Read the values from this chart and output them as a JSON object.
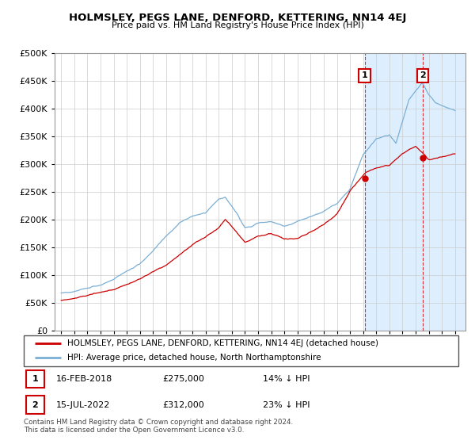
{
  "title": "HOLMSLEY, PEGS LANE, DENFORD, KETTERING, NN14 4EJ",
  "subtitle": "Price paid vs. HM Land Registry's House Price Index (HPI)",
  "ylim": [
    0,
    500000
  ],
  "xlim_start": 1994.5,
  "xlim_end": 2025.8,
  "hpi_color": "#7bafd4",
  "property_color": "#cc0000",
  "shade_color": "#ddeeff",
  "sale1_year": 2018.12,
  "sale1_price": 275000,
  "sale2_year": 2022.54,
  "sale2_price": 312000,
  "legend_property": "HOLMSLEY, PEGS LANE, DENFORD, KETTERING, NN14 4EJ (detached house)",
  "legend_hpi": "HPI: Average price, detached house, North Northamptonshire",
  "footer": "Contains HM Land Registry data © Crown copyright and database right 2024.\nThis data is licensed under the Open Government Licence v3.0.",
  "background_color": "#ffffff",
  "grid_color": "#cccccc",
  "table_row1": [
    "1",
    "16-FEB-2018",
    "£275,000",
    "14% ↓ HPI"
  ],
  "table_row2": [
    "2",
    "15-JUL-2022",
    "£312,000",
    "23% ↓ HPI"
  ]
}
